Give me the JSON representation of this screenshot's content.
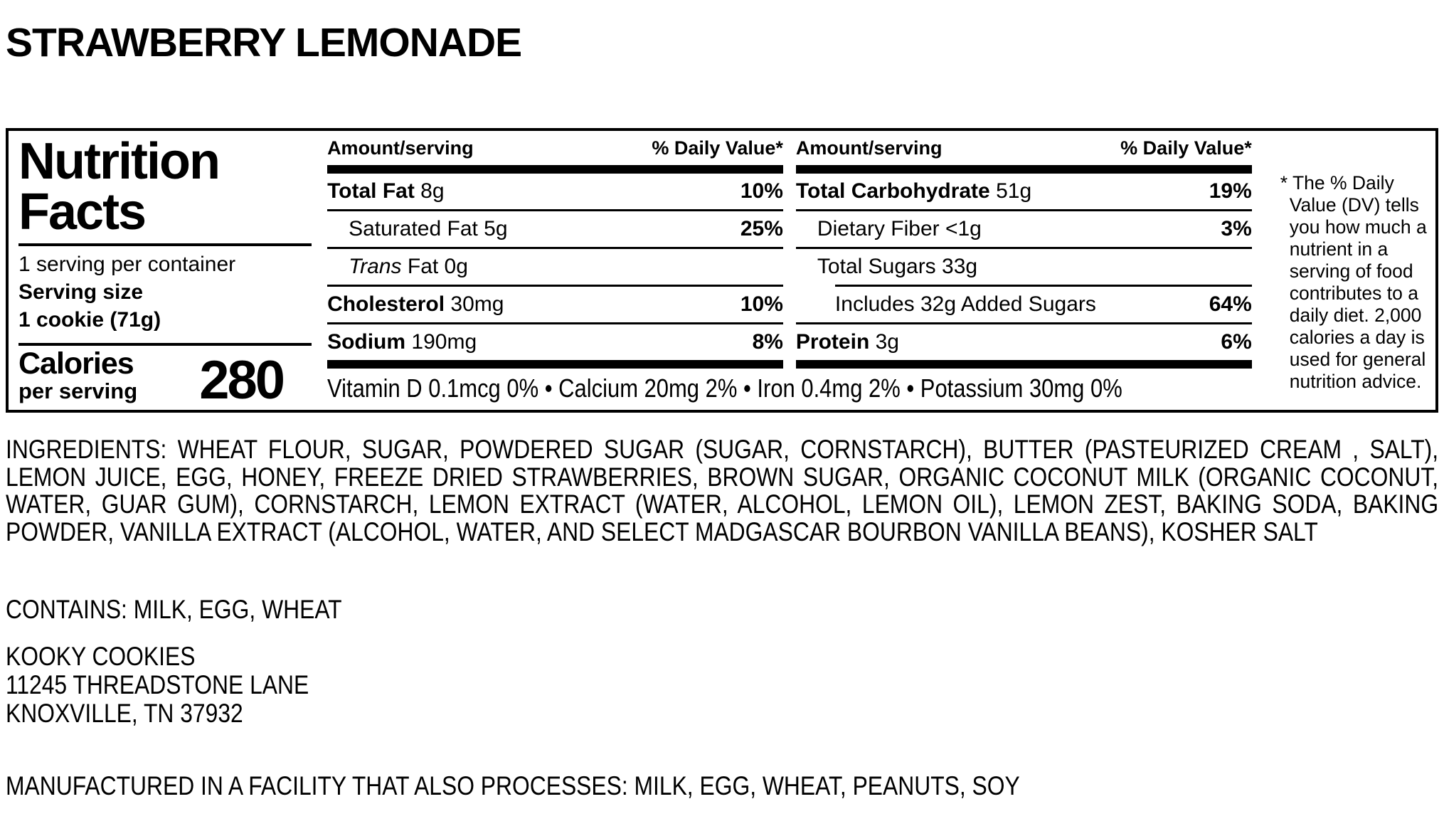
{
  "product": {
    "title": "STRAWBERRY LEMONADE"
  },
  "nutrition_panel": {
    "title_line1": "Nutrition",
    "title_line2": "Facts",
    "servings_per_container": "1 serving per container",
    "serving_size_label": "Serving size",
    "serving_size_value": "1 cookie (71g)",
    "calories_label_line1": "Calories",
    "calories_label_line2": "per serving",
    "calories_value": "280",
    "column_header_amount": "Amount/serving",
    "column_header_dv": "% Daily Value*",
    "columns": [
      {
        "rows": [
          {
            "bold_text": "Total Fat",
            "text": " 8g",
            "dv": "10%",
            "indent": 0
          },
          {
            "text": "Saturated Fat 5g",
            "dv": "25%",
            "indent": 1
          },
          {
            "italic_text": "Trans",
            "text": " Fat 0g",
            "dv": "",
            "indent": 1
          },
          {
            "bold_text": "Cholesterol",
            "text": " 30mg",
            "dv": "10%",
            "indent": 0
          },
          {
            "bold_text": "Sodium",
            "text": " 190mg",
            "dv": "8%",
            "indent": 0
          }
        ]
      },
      {
        "rows": [
          {
            "bold_text": "Total Carbohydrate",
            "text": " 51g",
            "dv": "19%",
            "indent": 0
          },
          {
            "text": "Dietary Fiber <1g",
            "dv": "3%",
            "indent": 1
          },
          {
            "text": "Total Sugars 33g",
            "dv": "",
            "indent": 1
          },
          {
            "text": "Includes 32g Added Sugars",
            "dv": "64%",
            "indent": 2,
            "inset_rule_above": true
          },
          {
            "bold_text": "Protein",
            "text": " 3g",
            "dv": "6%",
            "indent": 0
          }
        ]
      }
    ],
    "micronutrients": "Vitamin D 0.1mcg 0% • Calcium 20mg 2% • Iron 0.4mg 2% • Potassium 30mg 0%",
    "footnote": "* The % Daily Value (DV) tells you how much a nutrient in a serving of food contributes to a daily diet. 2,000 calories a day is used for general nutrition advice."
  },
  "ingredients": "INGREDIENTS: WHEAT FLOUR, SUGAR, POWDERED SUGAR (SUGAR, CORNSTARCH), BUTTER (PASTEURIZED CREAM , SALT), LEMON JUICE, EGG, HONEY, FREEZE DRIED STRAWBERRIES, BROWN SUGAR, ORGANIC COCONUT MILK (ORGANIC COCONUT, WATER, GUAR GUM), CORNSTARCH, LEMON EXTRACT (WATER, ALCOHOL, LEMON OIL), LEMON ZEST, BAKING SODA, BAKING POWDER, VANILLA EXTRACT (ALCOHOL, WATER, AND SELECT MADGASCAR BOURBON VANILLA BEANS), KOSHER SALT",
  "contains": "CONTAINS: MILK, EGG, WHEAT",
  "manufacturer": {
    "name": "KOOKY COOKIES",
    "address_line1": "11245 THREADSTONE LANE",
    "city_state_zip": "KNOXVILLE, TN 37932"
  },
  "facility_statement": "MANUFACTURED IN A FACILITY THAT ALSO PROCESSES: MILK, EGG, WHEAT, PEANUTS, SOY"
}
